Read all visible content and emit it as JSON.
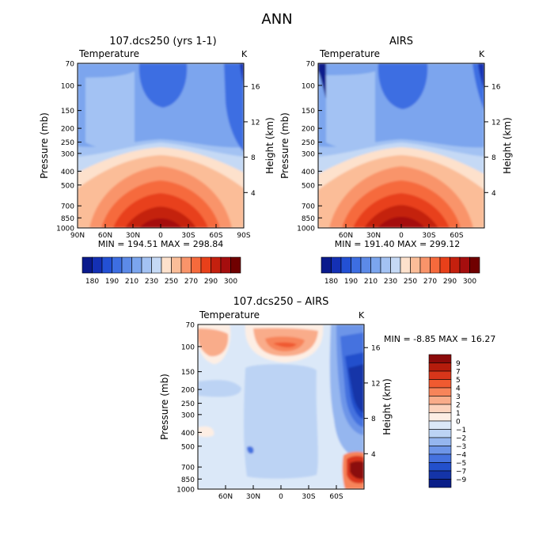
{
  "figure": {
    "title": "ANN"
  },
  "chart_data": [
    {
      "type": "heatmap",
      "title": "107.dcs250 (yrs 1-1)",
      "subtitle": "Temperature",
      "units": "K",
      "ylabel": "Pressure (mb)",
      "y2label": "Height (km)",
      "xticks": [
        "90N",
        "60N",
        "30N",
        "0",
        "30S",
        "60S",
        "90S"
      ],
      "yticks": [
        "70",
        "100",
        "150",
        "200",
        "250",
        "300",
        "400",
        "500",
        "700",
        "850",
        "1000"
      ],
      "y2ticks": [
        "4",
        "8",
        "12",
        "16"
      ],
      "stats": "MIN = 194.51   MAX = 298.84",
      "ylim": [
        1000,
        70
      ],
      "xlim": [
        90,
        -90
      ],
      "contour_bands": [
        {
          "level": 300,
          "lat_min": -25,
          "lat_max": 25,
          "pressure_top": 960,
          "color": "#a50e0e"
        },
        {
          "level": 290,
          "lat_min": -35,
          "lat_max": 35,
          "pressure_top": 930,
          "color": "#c4200e"
        },
        {
          "level": 280,
          "lat_min": -45,
          "lat_max": 45,
          "pressure_top": 860,
          "color": "#e8401a"
        },
        {
          "level": 270,
          "lat_min": -55,
          "lat_max": 55,
          "pressure_top": 760,
          "color": "#f66a3c"
        },
        {
          "level": 260,
          "lat_min": -70,
          "lat_max": 70,
          "pressure_top": 640,
          "color": "#f9946a"
        },
        {
          "level": 250,
          "lat_min": -80,
          "lat_max": 80,
          "pressure_top": 520,
          "color": "#fbbd98"
        },
        {
          "level": 240,
          "lat_min": -90,
          "lat_max": 90,
          "pressure_top": 420,
          "color": "#fde1cc"
        },
        {
          "level": 230,
          "lat_min": -90,
          "lat_max": 90,
          "pressure_top": 330,
          "color": "#c5d9f5"
        },
        {
          "level": 220,
          "lat_min": -90,
          "lat_max": 90,
          "pressure_top": 260,
          "color": "#a3c2f3"
        },
        {
          "level": 210,
          "lat_min": -90,
          "lat_max": 90,
          "pressure_top": 70,
          "color": "#7ba5ee"
        },
        {
          "level": 200,
          "lat_min": -25,
          "lat_max": 25,
          "pressure_top": 70,
          "pressure_bottom": 160,
          "color": "#3d6ee2"
        }
      ]
    },
    {
      "type": "heatmap",
      "title": "AIRS",
      "subtitle": "Temperature",
      "units": "K",
      "ylabel": "Pressure (mb)",
      "y2label": "Height (km)",
      "xticks": [
        "60N",
        "30N",
        "0",
        "30S",
        "60S"
      ],
      "yticks": [
        "70",
        "100",
        "150",
        "200",
        "250",
        "300",
        "400",
        "500",
        "700",
        "850",
        "1000"
      ],
      "y2ticks": [
        "4",
        "8",
        "12",
        "16"
      ],
      "stats": "MIN = 191.40   MAX = 299.12",
      "ylim": [
        1000,
        70
      ],
      "xlim": [
        90,
        -90
      ]
    },
    {
      "type": "heatmap",
      "title": "107.dcs250 – AIRS",
      "subtitle": "Temperature",
      "units": "K",
      "ylabel": "Pressure (mb)",
      "y2label": "Height (km)",
      "xticks": [
        "60N",
        "30N",
        "0",
        "30S",
        "60S"
      ],
      "yticks": [
        "70",
        "100",
        "150",
        "200",
        "250",
        "300",
        "400",
        "500",
        "700",
        "850",
        "1000"
      ],
      "y2ticks": [
        "4",
        "8",
        "12",
        "16"
      ],
      "stats": "MIN =  -8.85   MAX =  16.27",
      "ylim": [
        1000,
        70
      ],
      "xlim": [
        90,
        -90
      ]
    }
  ],
  "colorbars": {
    "abs": {
      "labels": [
        "180",
        "190",
        "210",
        "230",
        "250",
        "270",
        "290",
        "300"
      ],
      "colors": [
        "#0a1a8c",
        "#1430b4",
        "#2350d4",
        "#3d6ee2",
        "#5c8ae8",
        "#7ba5ee",
        "#a3c2f3",
        "#c5d9f5",
        "#fde1cc",
        "#fbbd98",
        "#f9946a",
        "#f66a3c",
        "#e8401a",
        "#c4200e",
        "#a50e0e",
        "#700000"
      ]
    },
    "diff": {
      "labels": [
        "9",
        "7",
        "5",
        "4",
        "3",
        "2",
        "1",
        "0",
        "−1",
        "−2",
        "−3",
        "−4",
        "−5",
        "−7",
        "−9"
      ],
      "colors": [
        "#8b0a0a",
        "#b51c0c",
        "#d8361a",
        "#f05a30",
        "#f7845a",
        "#f9ac8a",
        "#fcd2bc",
        "#fdeee4",
        "#dbe8f8",
        "#bcd3f4",
        "#95b6ef",
        "#6d95e8",
        "#4572df",
        "#2350cc",
        "#1434a8",
        "#0a1e88"
      ]
    }
  }
}
